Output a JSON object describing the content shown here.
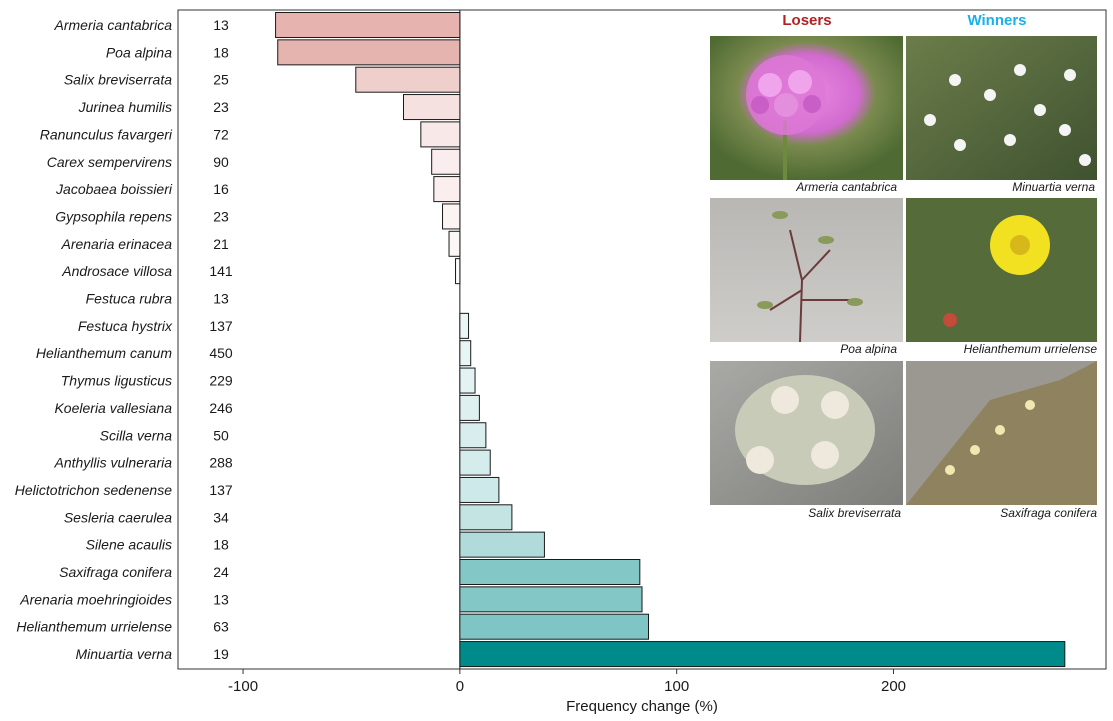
{
  "chart_data": {
    "type": "bar",
    "orientation": "horizontal",
    "xlabel": "Frequency change (%)",
    "ylabel": "",
    "xlim": [
      -130,
      298
    ],
    "xticks": [
      -100,
      0,
      100,
      200
    ],
    "xtick_labels": [
      "-100",
      "0",
      "100",
      "200"
    ],
    "grid": false,
    "color_scale": {
      "negative_max": "#e6b3ae",
      "zero": "#ffffff",
      "positive_max": "#008b8b"
    },
    "categories": [
      "Armeria cantabrica",
      "Poa alpina",
      "Salix breviserrata",
      "Jurinea humilis",
      "Ranunculus favargeri",
      "Carex sempervirens",
      "Jacobaea boissieri",
      "Gypsophila repens",
      "Arenaria erinacea",
      "Androsace villosa",
      "Festuca rubra",
      "Festuca hystrix",
      "Helianthemum canum",
      "Thymus ligusticus",
      "Koeleria vallesiana",
      "Scilla verna",
      "Anthyllis vulneraria",
      "Helictotrichon sedenense",
      "Sesleria caerulea",
      "Silene acaulis",
      "Saxifraga conifera",
      "Arenaria moehringioides",
      "Helianthemum urrielense",
      "Minuartia verna"
    ],
    "values": [
      -85,
      -84,
      -48,
      -26,
      -18,
      -13,
      -12,
      -8,
      -5,
      -2,
      0,
      4,
      5,
      7,
      9,
      12,
      14,
      18,
      24,
      39,
      83,
      84,
      87,
      279
    ],
    "sample_sizes": [
      "13",
      "18",
      "25",
      "23",
      "72",
      "90",
      "16",
      "23",
      "21",
      "141",
      "13",
      "137",
      "450",
      "229",
      "246",
      "50",
      "288",
      "137",
      "34",
      "18",
      "24",
      "13",
      "63",
      "19"
    ]
  },
  "gallery": {
    "losers_label": "Losers",
    "winners_label": "Winners",
    "losers_color": "#b22222",
    "winners_color": "#1ab0e8",
    "photos": [
      {
        "caption": "Armeria cantabrica",
        "group": "loser"
      },
      {
        "caption": "Minuartia verna",
        "group": "winner"
      },
      {
        "caption": "Poa alpina",
        "group": "loser"
      },
      {
        "caption": "Helianthemum urrielense",
        "group": "winner"
      },
      {
        "caption": "Salix breviserrata",
        "group": "loser"
      },
      {
        "caption": "Saxifraga conifera",
        "group": "winner"
      }
    ]
  }
}
